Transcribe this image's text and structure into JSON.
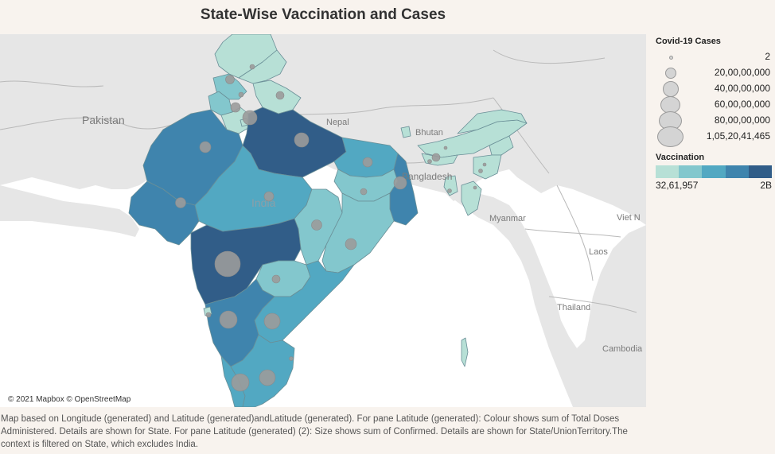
{
  "title": "State-Wise Vaccination and Cases",
  "map": {
    "attribution": "© 2021 Mapbox © OpenStreetMap",
    "place_labels": [
      {
        "name": "Pakistan"
      },
      {
        "name": "Nepal"
      },
      {
        "name": "Bhutan"
      },
      {
        "name": "Bangladesh"
      },
      {
        "name": "India"
      },
      {
        "name": "Myanmar"
      },
      {
        "name": "Laos"
      },
      {
        "name": "Thailand"
      },
      {
        "name": "Viet N"
      },
      {
        "name": "Cambodia"
      }
    ]
  },
  "legend": {
    "cases": {
      "title": "Covid-19 Cases",
      "entries": [
        {
          "label": "2",
          "value": 2
        },
        {
          "label": "20,00,00,000",
          "value": 200000000
        },
        {
          "label": "40,00,00,000",
          "value": 400000000
        },
        {
          "label": "60,00,00,000",
          "value": 600000000
        },
        {
          "label": "80,00,00,000",
          "value": 800000000
        },
        {
          "label": "1,05,20,41,465",
          "value": 1052041465
        }
      ]
    },
    "vaccination": {
      "title": "Vaccination",
      "min_label": "32,61,957",
      "max_label": "2B",
      "colors": [
        "#b7e0d6",
        "#83c7cd",
        "#52a8c2",
        "#3f84ad",
        "#315d88"
      ]
    }
  },
  "caption": "Map based on Longitude (generated) and Latitude (generated)andLatitude (generated). For pane Latitude (generated): Colour shows sum of Total Doses Administered. Details are shown for State. For pane Latitude (generated) (2): Size shows sum of Confirmed. Details are shown for State/UnionTerritory.The context is filtered on State, which excludes India.",
  "colors": {
    "land": "#e6e6e6",
    "water": "#ffffff",
    "border": "#b9b9b9",
    "bubble": "#9b9b9b"
  }
}
